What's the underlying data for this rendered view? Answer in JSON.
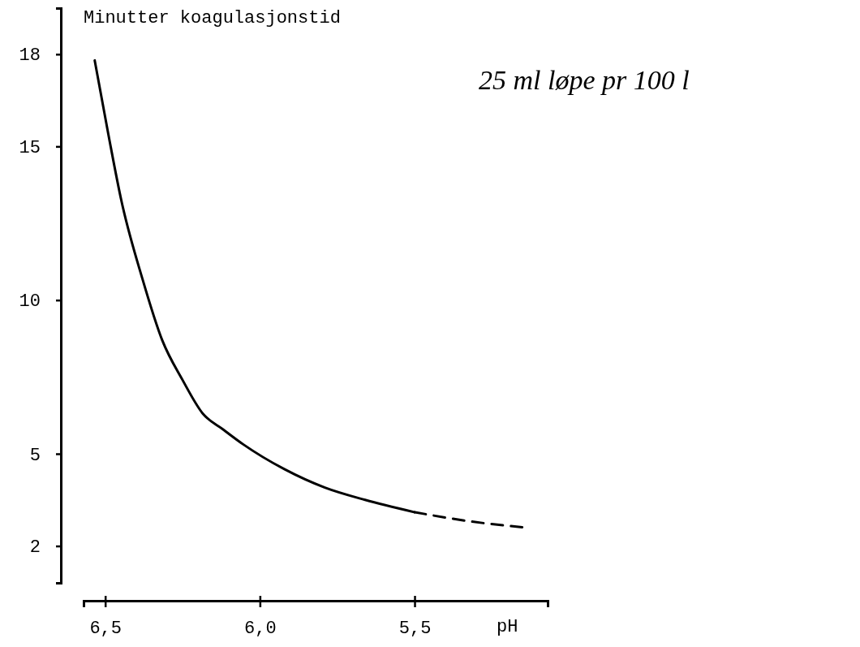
{
  "chart_data": {
    "type": "line",
    "ylabel": "Minutter koagulasjonstid",
    "xlabel": "pH",
    "annotations": [
      "25 ml løpe pr 100 l"
    ],
    "xlim": [
      6.57,
      5.07
    ],
    "ylim": [
      0.8,
      19.5
    ],
    "xticks": [
      {
        "value": 6.5,
        "label": "6,5"
      },
      {
        "value": 6.0,
        "label": "6,0"
      },
      {
        "value": 5.5,
        "label": "5,5"
      }
    ],
    "yticks": [
      2,
      5,
      10,
      15,
      18
    ],
    "grid": false,
    "marker": "none",
    "series": [
      {
        "color": "#000000",
        "line_style": "solid",
        "x": [
          6.534,
          6.49,
          6.447,
          6.38,
          6.316,
          6.25,
          6.184,
          6.12,
          6.053,
          5.921,
          5.79,
          5.66,
          5.5
        ],
        "values": [
          17.8,
          15.4,
          13.2,
          10.7,
          8.7,
          7.4,
          6.3,
          5.8,
          5.3,
          4.5,
          3.9,
          3.5,
          3.1
        ]
      },
      {
        "color": "#000000",
        "line_style": "dashed",
        "x": [
          5.5,
          5.32,
          5.14
        ],
        "values": [
          3.1,
          2.8,
          2.6
        ]
      }
    ]
  }
}
